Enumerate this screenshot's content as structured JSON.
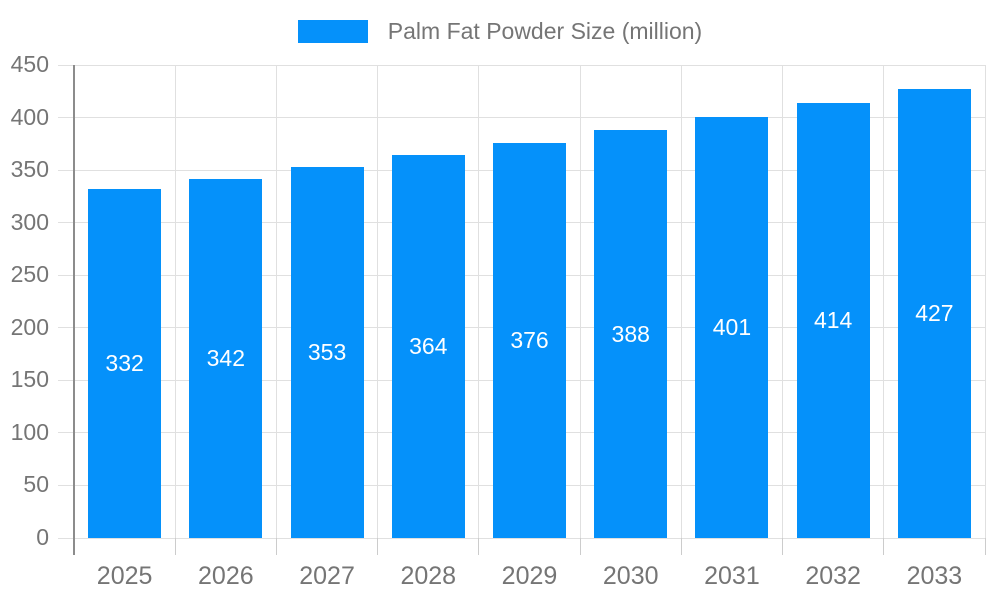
{
  "chart_data": {
    "type": "bar",
    "title": "Palm Fat Powder Size (million)",
    "legend": "Palm Fat Powder Size (million)",
    "legend_position": "top",
    "categories": [
      "2025",
      "2026",
      "2027",
      "2028",
      "2029",
      "2030",
      "2031",
      "2032",
      "2033"
    ],
    "values": [
      332,
      342,
      353,
      364,
      376,
      388,
      401,
      414,
      427
    ],
    "xlabel": "",
    "ylabel": "",
    "ylim": [
      0,
      450
    ],
    "ytick_step": 50,
    "yticks": [
      "0",
      "50",
      "100",
      "150",
      "200",
      "250",
      "300",
      "350",
      "400",
      "450"
    ],
    "grid": "on",
    "value_labels": "inside-center"
  },
  "colors": {
    "bar": "#0591fa",
    "value_label": "#ffffff",
    "axis_text": "#757575",
    "gridline": "#e0e0e0",
    "axis_line": "#8c8c8c",
    "tick": "#cccccc",
    "background": "#ffffff"
  }
}
